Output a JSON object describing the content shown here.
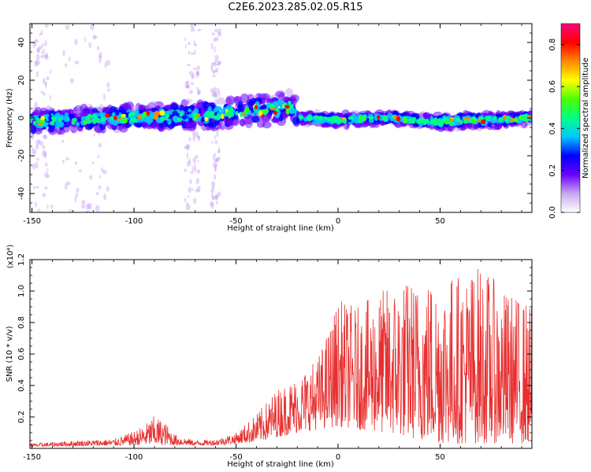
{
  "title": "C2E6.2023.285.02.05.R15",
  "chart_data": [
    {
      "type": "heatmap",
      "xlabel": "Height of straight line (km)",
      "ylabel": "Frequency (Hz)",
      "xlim": [
        -151,
        95
      ],
      "ylim": [
        -50,
        50
      ],
      "xticks": [
        -150,
        -100,
        -50,
        0,
        50
      ],
      "yticks": [
        -40,
        -20,
        0,
        20,
        40
      ],
      "colorbar": {
        "label": "Normalized spectral amplitude",
        "range": [
          0.0,
          0.9
        ],
        "ticks": [
          "0.0",
          "0.2",
          "0.4",
          "0.6",
          "0.8"
        ],
        "colors": [
          "#ffffff",
          "#c9a8f0",
          "#6a00ff",
          "#0000ff",
          "#00c8ff",
          "#00ff88",
          "#4cff00",
          "#ffff00",
          "#ff8800",
          "#ff0000",
          "#ff0080"
        ]
      },
      "band": {
        "center_frequency_hz": [
          [
            -150,
            -2
          ],
          [
            -130,
            -1
          ],
          [
            -110,
            0
          ],
          [
            -90,
            1
          ],
          [
            -70,
            1
          ],
          [
            -50,
            3
          ],
          [
            -35,
            4
          ],
          [
            -22,
            6
          ],
          [
            -20,
            0
          ],
          [
            0,
            -1
          ],
          [
            25,
            0
          ],
          [
            50,
            -2
          ],
          [
            75,
            -1
          ],
          [
            95,
            0
          ]
        ],
        "half_width_hz": [
          [
            -150,
            6
          ],
          [
            -110,
            6
          ],
          [
            -70,
            7
          ],
          [
            -40,
            8
          ],
          [
            -22,
            8
          ],
          [
            -20,
            3
          ],
          [
            30,
            3
          ],
          [
            60,
            4
          ],
          [
            95,
            3
          ]
        ]
      }
    },
    {
      "type": "line",
      "xlabel": "Height of straight line (km)",
      "ylabel": "SNR (10 * v/v)",
      "multiplier": "(x10⁴)",
      "xlim": [
        -151,
        95
      ],
      "ylim": [
        0,
        1.2
      ],
      "xticks": [
        -150,
        -100,
        -50,
        0,
        50
      ],
      "yticks": [
        0.2,
        0.4,
        0.6,
        0.8,
        1.0,
        1.2
      ],
      "line_color": "#e83030",
      "envelope": [
        [
          -151,
          0.03
        ],
        [
          -130,
          0.05
        ],
        [
          -110,
          0.06
        ],
        [
          -100,
          0.11
        ],
        [
          -95,
          0.15
        ],
        [
          -90,
          0.21
        ],
        [
          -85,
          0.17
        ],
        [
          -80,
          0.09
        ],
        [
          -70,
          0.05
        ],
        [
          -60,
          0.06
        ],
        [
          -50,
          0.1
        ],
        [
          -40,
          0.22
        ],
        [
          -30,
          0.38
        ],
        [
          -20,
          0.46
        ],
        [
          -10,
          0.58
        ],
        [
          -5,
          0.75
        ],
        [
          0,
          0.95
        ],
        [
          10,
          0.9
        ],
        [
          20,
          1.0
        ],
        [
          30,
          1.08
        ],
        [
          40,
          1.08
        ],
        [
          50,
          1.12
        ],
        [
          60,
          1.12
        ],
        [
          70,
          1.18
        ],
        [
          80,
          1.02
        ],
        [
          90,
          0.96
        ],
        [
          95,
          0.92
        ]
      ],
      "baseline": [
        [
          -151,
          0.01
        ],
        [
          -100,
          0.02
        ],
        [
          -60,
          0.02
        ],
        [
          -40,
          0.04
        ],
        [
          -20,
          0.1
        ],
        [
          0,
          0.14
        ],
        [
          20,
          0.1
        ],
        [
          50,
          0.03
        ],
        [
          95,
          0.03
        ]
      ]
    }
  ]
}
